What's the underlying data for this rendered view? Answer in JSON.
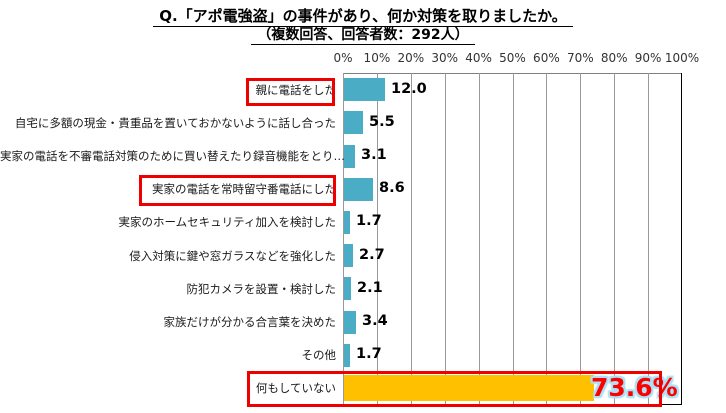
{
  "title": "Q.「アポ電強盗」の事件があり、何か対策を取りましたか。",
  "subtitle": "（複数回答、回答者数：292人）",
  "chart_data": {
    "type": "bar",
    "orientation": "horizontal",
    "title": "Q.「アポ電強盗」の事件があり、何か対策を取りましたか。",
    "subtitle": "（複数回答、回答者数：292人）",
    "categories": [
      "親に電話をした",
      "自宅に多額の現金・貴重品を置いておかないように話し合った",
      "実家の電話を不審電話対策のために買い替えたり録音機能をとり…",
      "実家の電話を常時留守番電話にした",
      "実家のホームセキュリティ加入を検討した",
      "侵入対策に鍵や窓ガラスなどを強化した",
      "防犯カメラを設置・検討した",
      "家族だけが分かる合言葉を決めた",
      "その他",
      "何もしていない"
    ],
    "values": [
      12.0,
      5.5,
      3.1,
      8.6,
      1.7,
      2.7,
      2.1,
      3.4,
      1.7,
      73.6
    ],
    "value_labels": [
      "12.0",
      "5.5",
      "3.1",
      "8.6",
      "1.7",
      "2.7",
      "2.1",
      "3.4",
      "1.7",
      "73.6%"
    ],
    "highlighted_category_indexes": [
      0,
      3,
      9
    ],
    "axis": {
      "min": 0,
      "max": 100,
      "tick_labels": [
        "0%",
        "10%",
        "20%",
        "30%",
        "40%",
        "50%",
        "60%",
        "70%",
        "80%",
        "90%",
        "100%"
      ],
      "position": "top",
      "grid": true
    },
    "legend": "none",
    "colors": {
      "bar": "#4BACC6",
      "last_bar": "#FFC000",
      "highlight_box": "#EE0000",
      "final_value_text": "#FF0000",
      "final_value_glow": "#ADE0F5",
      "gridline": "#999999",
      "plot_border": "#000000"
    }
  }
}
